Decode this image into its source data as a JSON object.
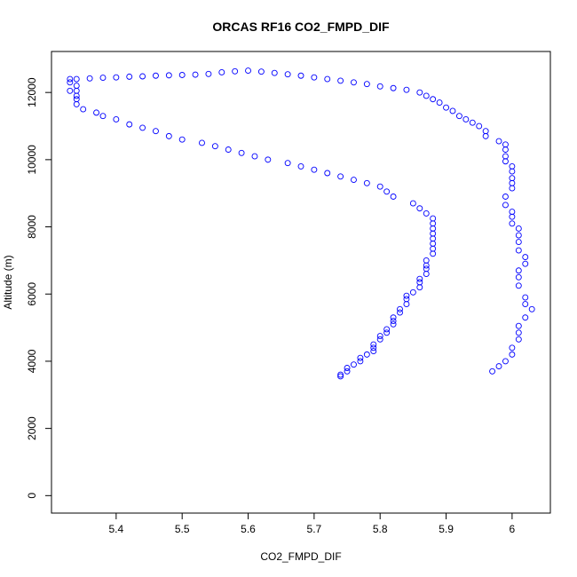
{
  "chart_data": {
    "type": "scatter",
    "title": "ORCAS RF16 CO2_FMPD_DIF",
    "x_label": "CO2_FMPD_DIF",
    "y_label": "Altitude (m)",
    "color": "#0000ff",
    "xlim": [
      5.302,
      6.058
    ],
    "ylim": [
      -520,
      13220
    ],
    "xticks": [
      5.4,
      5.5,
      5.6,
      5.7,
      5.8,
      5.9,
      6.0
    ],
    "yticks": [
      0,
      2000,
      4000,
      6000,
      8000,
      10000,
      12000
    ],
    "x": [
      5.74,
      5.74,
      5.75,
      5.75,
      5.76,
      5.77,
      5.77,
      5.78,
      5.79,
      5.79,
      5.79,
      5.8,
      5.8,
      5.81,
      5.81,
      5.82,
      5.82,
      5.82,
      5.83,
      5.83,
      5.84,
      5.84,
      5.84,
      5.85,
      5.86,
      5.86,
      5.86,
      5.87,
      5.87,
      5.87,
      5.87,
      5.88,
      5.88,
      5.88,
      5.88,
      5.88,
      5.88,
      5.88,
      5.88,
      5.87,
      5.86,
      5.85,
      5.82,
      5.81,
      5.8,
      5.78,
      5.76,
      5.74,
      5.72,
      5.7,
      5.68,
      5.66,
      5.63,
      5.61,
      5.59,
      5.57,
      5.55,
      5.53,
      5.5,
      5.48,
      5.46,
      5.44,
      5.42,
      5.4,
      5.38,
      5.37,
      5.35,
      5.34,
      5.34,
      5.34,
      5.34,
      5.34,
      5.33,
      5.33,
      5.33,
      5.34,
      5.36,
      5.38,
      5.4,
      5.42,
      5.44,
      5.46,
      5.48,
      5.5,
      5.52,
      5.54,
      5.56,
      5.58,
      5.6,
      5.62,
      5.64,
      5.66,
      5.68,
      5.7,
      5.72,
      5.74,
      5.76,
      5.78,
      5.8,
      5.82,
      5.84,
      5.86,
      5.87,
      5.88,
      5.89,
      5.9,
      5.91,
      5.92,
      5.93,
      5.94,
      5.95,
      5.96,
      5.96,
      5.98,
      5.99,
      5.99,
      5.99,
      5.99,
      6.0,
      6.0,
      6.0,
      6.0,
      6.0,
      5.99,
      5.99,
      6.0,
      6.0,
      6.0,
      6.01,
      6.01,
      6.01,
      6.01,
      6.02,
      6.02,
      6.01,
      6.01,
      6.01,
      6.02,
      6.02,
      6.03,
      6.02,
      6.01,
      6.01,
      6.01,
      6.0,
      6.0,
      5.99,
      5.98,
      5.97
    ],
    "values": [
      3550,
      3600,
      3700,
      3800,
      3900,
      4000,
      4100,
      4200,
      4300,
      4400,
      4500,
      4650,
      4750,
      4850,
      4950,
      5100,
      5200,
      5300,
      5450,
      5550,
      5700,
      5850,
      5950,
      6050,
      6200,
      6350,
      6450,
      6600,
      6750,
      6850,
      7000,
      7200,
      7350,
      7500,
      7650,
      7800,
      7950,
      8100,
      8250,
      8400,
      8550,
      8700,
      8900,
      9050,
      9200,
      9300,
      9400,
      9500,
      9600,
      9700,
      9800,
      9900,
      10000,
      10100,
      10200,
      10300,
      10400,
      10500,
      10600,
      10700,
      10850,
      10950,
      11050,
      11200,
      11300,
      11400,
      11500,
      11650,
      11800,
      11900,
      12050,
      12200,
      12050,
      12300,
      12400,
      12400,
      12420,
      12440,
      12450,
      12470,
      12480,
      12500,
      12510,
      12520,
      12530,
      12550,
      12600,
      12630,
      12650,
      12620,
      12580,
      12540,
      12500,
      12450,
      12400,
      12350,
      12300,
      12250,
      12180,
      12130,
      12080,
      12000,
      11900,
      11800,
      11700,
      11550,
      11450,
      11300,
      11200,
      11100,
      11000,
      10850,
      10700,
      10550,
      10450,
      10300,
      10100,
      9950,
      9800,
      9650,
      9450,
      9300,
      9150,
      8900,
      8650,
      8450,
      8300,
      8100,
      7950,
      7750,
      7550,
      7300,
      7100,
      6900,
      6700,
      6500,
      6250,
      5900,
      5700,
      5550,
      5300,
      5050,
      4850,
      4650,
      4400,
      4200,
      4000,
      3850,
      3700
    ]
  }
}
